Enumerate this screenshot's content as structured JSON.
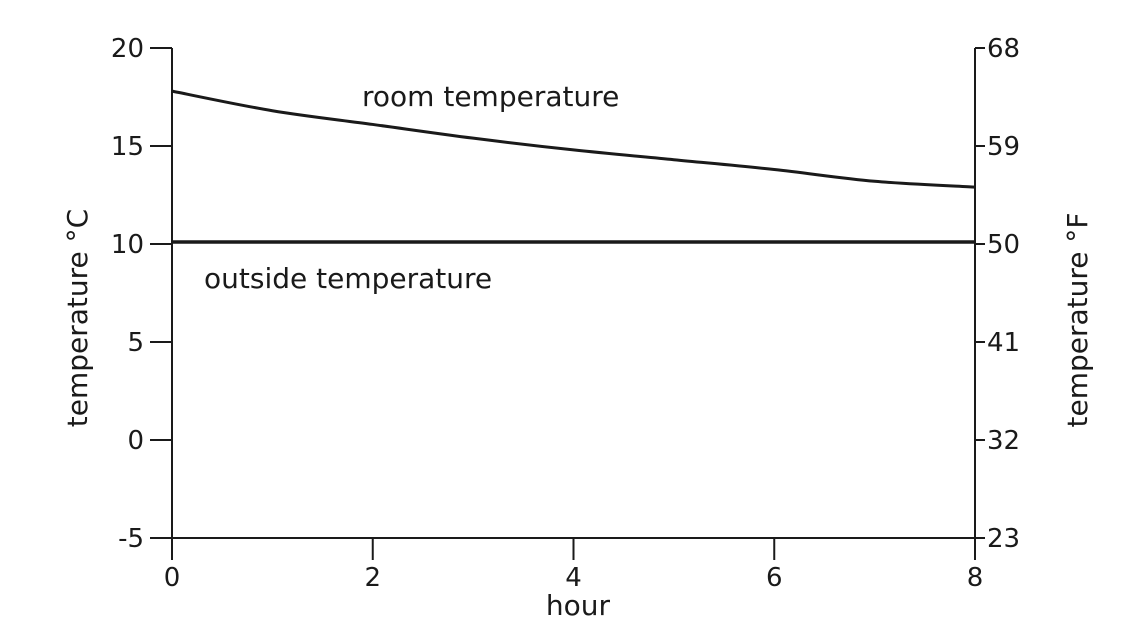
{
  "chart_data": {
    "type": "line",
    "xlabel": "hour",
    "ylabel_left": "temperature °C",
    "ylabel_right": "temperature °F",
    "xlim": [
      0,
      8
    ],
    "ylim": [
      -5,
      20
    ],
    "ylim_right": [
      23,
      68
    ],
    "x_ticks": [
      0,
      2,
      4,
      6,
      8
    ],
    "y_ticks_left": [
      -5,
      0,
      5,
      10,
      15,
      20
    ],
    "y_ticks_right": [
      23,
      32,
      41,
      50,
      59,
      68
    ],
    "grid": false,
    "legend": "none",
    "color": "#1a1a1a",
    "series": [
      {
        "name": "room temperature",
        "x": [
          0,
          1,
          2,
          3,
          4,
          5,
          6,
          7,
          8
        ],
        "y": [
          17.8,
          16.8,
          16.1,
          15.4,
          14.8,
          14.3,
          13.8,
          13.2,
          12.9
        ]
      },
      {
        "name": "outside temperature",
        "x": [
          0,
          8
        ],
        "y": [
          10.1,
          10.1
        ]
      }
    ]
  }
}
